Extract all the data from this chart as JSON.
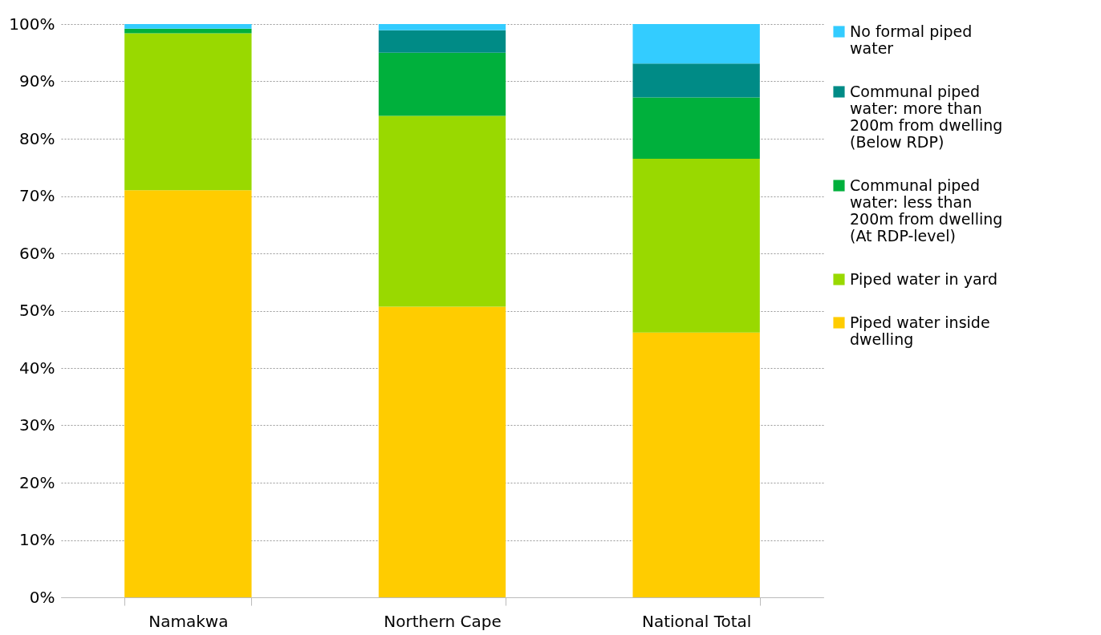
{
  "chart_data": {
    "type": "bar",
    "stacked": true,
    "categories": [
      "Namakwa",
      "Northern Cape",
      "National Total"
    ],
    "series": [
      {
        "name": "Piped water inside dwelling",
        "color": "#ffcc00",
        "values": [
          71.0,
          50.7,
          46.2
        ]
      },
      {
        "name": "Piped water in yard",
        "color": "#99d900",
        "values": [
          27.4,
          33.3,
          30.3
        ]
      },
      {
        "name": "Communal piped water: less than 200m from dwelling (At RDP-level)",
        "color": "#00b03c",
        "values": [
          0.8,
          11.0,
          10.7
        ]
      },
      {
        "name": "Communal piped water: more than 200m from dwelling (Below RDP)",
        "color": "#008b86",
        "values": [
          0,
          3.9,
          5.9
        ]
      },
      {
        "name": "No formal piped water",
        "color": "#33ccff",
        "values": [
          0.8,
          1.1,
          6.9
        ]
      }
    ],
    "ylim": [
      0,
      100
    ],
    "yticks": [
      {
        "value": 0,
        "label": "0%"
      },
      {
        "value": 10,
        "label": "10%"
      },
      {
        "value": 20,
        "label": "20%"
      },
      {
        "value": 30,
        "label": "30%"
      },
      {
        "value": 40,
        "label": "40%"
      },
      {
        "value": 50,
        "label": "50%"
      },
      {
        "value": 60,
        "label": "60%"
      },
      {
        "value": 70,
        "label": "70%"
      },
      {
        "value": 80,
        "label": "80%"
      },
      {
        "value": 90,
        "label": "90%"
      },
      {
        "value": 100,
        "label": "100%"
      }
    ],
    "grid": "y",
    "legend": "right"
  }
}
